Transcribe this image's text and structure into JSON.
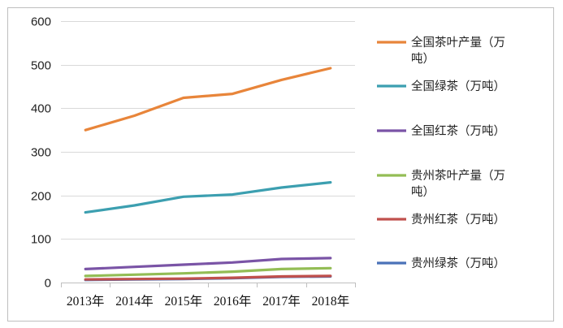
{
  "chart_data": {
    "type": "line",
    "title": "",
    "xlabel": "",
    "ylabel": "",
    "ylim": [
      0,
      600
    ],
    "yticks": [
      0,
      100,
      200,
      300,
      400,
      500,
      600
    ],
    "grid": true,
    "legend_position": "right",
    "categories": [
      "2013年",
      "2014年",
      "2015年",
      "2016年",
      "2017年",
      "2018年"
    ],
    "series": [
      {
        "name": "全国茶叶产量（万吨）",
        "legend_lines": [
          "全国茶叶产量（万",
          "吨）"
        ],
        "color": "#e8853a",
        "values": [
          350,
          383,
          424,
          433,
          465,
          492
        ]
      },
      {
        "name": "全国绿茶（万吨）",
        "legend_lines": [
          "全国绿茶（万吨）"
        ],
        "color": "#3c9fb0",
        "values": [
          161,
          177,
          197,
          202,
          218,
          230
        ]
      },
      {
        "name": "全国红茶（万吨）",
        "legend_lines": [
          "全国红茶（万吨）"
        ],
        "color": "#7a54a6",
        "values": [
          31,
          36,
          41,
          46,
          54,
          56
        ]
      },
      {
        "name": "贵州茶叶产量（万吨）",
        "legend_lines": [
          "贵州茶叶产量（万",
          "吨）"
        ],
        "color": "#93bd55",
        "values": [
          15,
          18,
          21,
          25,
          31,
          33
        ]
      },
      {
        "name": "贵州红茶（万吨）",
        "legend_lines": [
          "贵州红茶（万吨）"
        ],
        "color": "#c0504d",
        "values": [
          7,
          8,
          9,
          11,
          14,
          15
        ]
      },
      {
        "name": "贵州绿茶（万吨）",
        "legend_lines": [
          "贵州绿茶（万吨）"
        ],
        "color": "#4a72b8",
        "values": [
          6,
          7,
          8,
          10,
          13,
          14
        ]
      }
    ]
  }
}
